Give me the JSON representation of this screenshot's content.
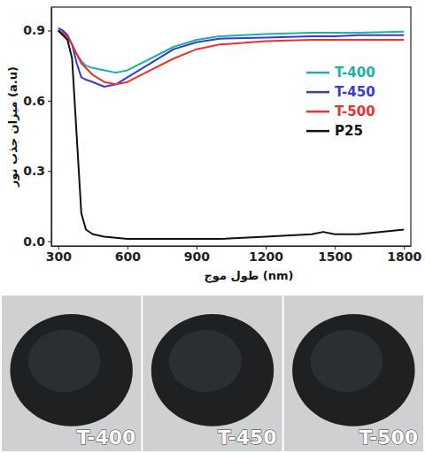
{
  "chart_data": {
    "type": "line",
    "x_label": "طول موج (nm)",
    "y_label": "میزان جذب نور (a.u)",
    "x": [
      300,
      320,
      340,
      360,
      380,
      400,
      420,
      450,
      500,
      550,
      600,
      700,
      800,
      900,
      1000,
      1200,
      1400,
      1450,
      1500,
      1600,
      1800
    ],
    "series": [
      {
        "name": "T-400",
        "color": "#1fb0a8",
        "values": [
          0.9,
          0.89,
          0.87,
          0.84,
          0.8,
          0.77,
          0.75,
          0.74,
          0.73,
          0.72,
          0.73,
          0.78,
          0.83,
          0.86,
          0.875,
          0.885,
          0.89,
          0.89,
          0.89,
          0.89,
          0.895
        ]
      },
      {
        "name": "T-450",
        "color": "#3a3ad0",
        "values": [
          0.91,
          0.9,
          0.88,
          0.84,
          0.76,
          0.7,
          0.69,
          0.68,
          0.66,
          0.67,
          0.7,
          0.76,
          0.82,
          0.85,
          0.865,
          0.87,
          0.875,
          0.875,
          0.875,
          0.88,
          0.88
        ]
      },
      {
        "name": "T-500",
        "color": "#ee3030",
        "values": [
          0.9,
          0.89,
          0.87,
          0.84,
          0.8,
          0.76,
          0.74,
          0.71,
          0.68,
          0.67,
          0.68,
          0.73,
          0.78,
          0.82,
          0.84,
          0.855,
          0.86,
          0.86,
          0.86,
          0.86,
          0.86
        ]
      },
      {
        "name": "P25",
        "color": "#111111",
        "values": [
          0.9,
          0.88,
          0.86,
          0.78,
          0.45,
          0.12,
          0.05,
          0.03,
          0.02,
          0.015,
          0.01,
          0.01,
          0.01,
          0.01,
          0.01,
          0.02,
          0.03,
          0.04,
          0.03,
          0.03,
          0.05
        ]
      }
    ],
    "xlim": [
      270,
      1830
    ],
    "xticks": [
      300,
      600,
      900,
      1200,
      1500,
      1800
    ],
    "ylim": [
      -0.02,
      1.0
    ],
    "yticks": [
      {
        "value": 0,
        "label": "0.0"
      },
      0.3,
      0.6,
      0.9
    ],
    "legend": "right",
    "grid": false
  },
  "photo_labels": [
    "T-400",
    "T-450",
    "T-500"
  ]
}
